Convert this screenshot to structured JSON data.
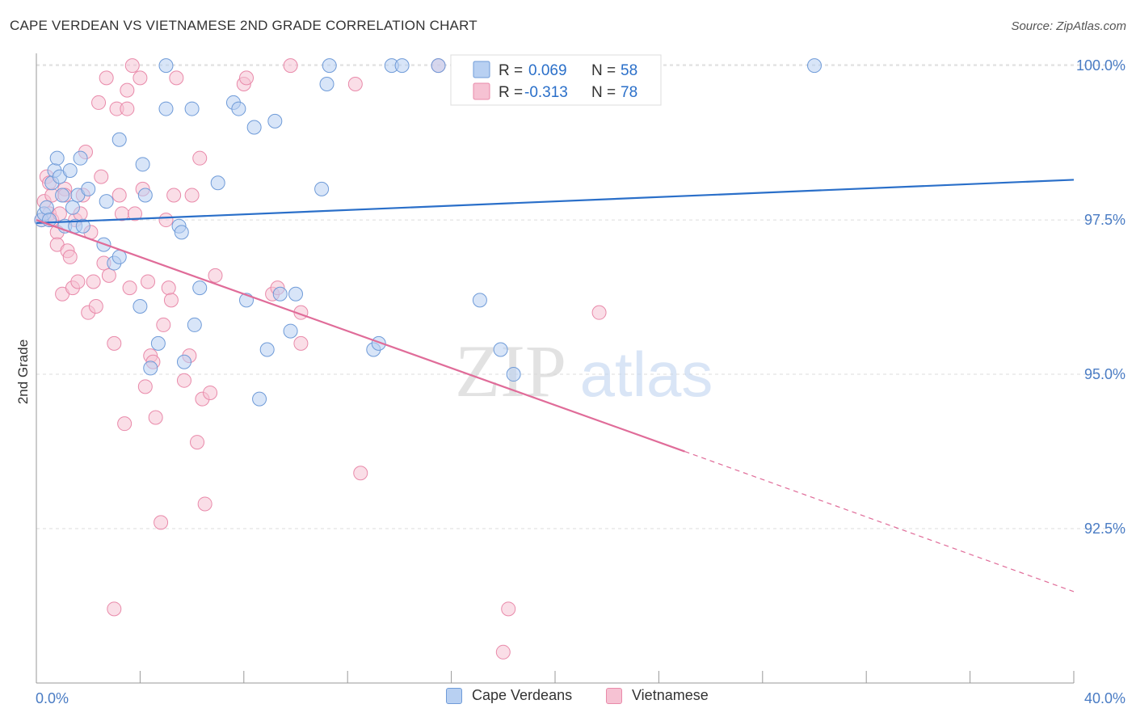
{
  "title": "CAPE VERDEAN VS VIETNAMESE 2ND GRADE CORRELATION CHART",
  "source": "Source: ZipAtlas.com",
  "watermark": {
    "zip": "ZIP",
    "atlas": "atlas"
  },
  "colors": {
    "blue_fill": "#b8d0f2",
    "blue_stroke": "#6f9bd8",
    "blue_line": "#2a6fc9",
    "pink_fill": "#f6c2d3",
    "pink_stroke": "#e98aaa",
    "pink_line": "#e06c99",
    "tick_label": "#4a7cc4",
    "grid": "#dddddd"
  },
  "stats_legend": [
    {
      "r_label": "R =",
      "r_value": "0.069",
      "n_label": "N =",
      "n_value": "58",
      "series": "blue"
    },
    {
      "r_label": "R =",
      "r_value": "-0.313",
      "n_label": "N =",
      "n_value": "78",
      "series": "pink"
    }
  ],
  "bottom_legend": [
    {
      "label": "Cape Verdeans",
      "series": "blue"
    },
    {
      "label": "Vietnamese",
      "series": "pink"
    }
  ],
  "chart_data": {
    "type": "scatter",
    "title": "CAPE VERDEAN VS VIETNAMESE 2ND GRADE CORRELATION CHART",
    "xlabel": "",
    "ylabel": "2nd Grade",
    "xlim": [
      0,
      40
    ],
    "ylim": [
      90.0,
      100.25
    ],
    "x_tick_labels": [
      "0.0%",
      "40.0%"
    ],
    "y_ticks": [
      92.5,
      95.0,
      97.5,
      100.0
    ],
    "y_tick_labels": [
      "92.5%",
      "95.0%",
      "97.5%",
      "100.0%"
    ],
    "grid": "horizontal dashed",
    "series": [
      {
        "name": "Cape Verdeans",
        "color": "blue",
        "points": [
          [
            0.2,
            97.5
          ],
          [
            0.3,
            97.6
          ],
          [
            0.4,
            97.7
          ],
          [
            0.5,
            97.5
          ],
          [
            0.6,
            98.1
          ],
          [
            0.7,
            98.3
          ],
          [
            0.9,
            98.2
          ],
          [
            0.8,
            98.5
          ],
          [
            1.0,
            97.9
          ],
          [
            1.1,
            97.4
          ],
          [
            1.3,
            98.3
          ],
          [
            1.4,
            97.7
          ],
          [
            1.5,
            97.4
          ],
          [
            1.6,
            97.9
          ],
          [
            1.7,
            98.5
          ],
          [
            1.8,
            97.4
          ],
          [
            2.0,
            98.0
          ],
          [
            2.7,
            97.8
          ],
          [
            2.6,
            97.1
          ],
          [
            3.0,
            96.8
          ],
          [
            3.2,
            96.9
          ],
          [
            3.2,
            98.8
          ],
          [
            4.0,
            96.1
          ],
          [
            4.4,
            95.1
          ],
          [
            4.7,
            95.5
          ],
          [
            4.2,
            97.9
          ],
          [
            4.1,
            98.4
          ],
          [
            5.0,
            99.3
          ],
          [
            5.0,
            100.0
          ],
          [
            6.0,
            99.3
          ],
          [
            5.5,
            97.4
          ],
          [
            5.6,
            97.3
          ],
          [
            5.7,
            95.2
          ],
          [
            6.1,
            95.8
          ],
          [
            6.3,
            96.4
          ],
          [
            7.0,
            98.1
          ],
          [
            7.6,
            99.4
          ],
          [
            7.8,
            99.3
          ],
          [
            8.1,
            96.2
          ],
          [
            8.6,
            94.6
          ],
          [
            8.4,
            99.0
          ],
          [
            8.9,
            95.4
          ],
          [
            9.2,
            99.1
          ],
          [
            9.4,
            96.3
          ],
          [
            9.8,
            95.7
          ],
          [
            10.0,
            96.3
          ],
          [
            11.0,
            98.0
          ],
          [
            11.3,
            100.0
          ],
          [
            11.2,
            99.7
          ],
          [
            13.0,
            95.4
          ],
          [
            13.2,
            95.5
          ],
          [
            13.7,
            100.0
          ],
          [
            14.1,
            100.0
          ],
          [
            15.5,
            100.0
          ],
          [
            17.1,
            96.2
          ],
          [
            17.9,
            95.4
          ],
          [
            18.4,
            95.0
          ],
          [
            30.0,
            100.0
          ]
        ],
        "trend": {
          "x": [
            0,
            40
          ],
          "y": [
            97.45,
            98.15
          ]
        }
      },
      {
        "name": "Vietnamese",
        "color": "pink",
        "points": [
          [
            0.2,
            97.5
          ],
          [
            0.3,
            97.8
          ],
          [
            0.4,
            98.2
          ],
          [
            0.5,
            97.6
          ],
          [
            0.6,
            97.9
          ],
          [
            0.6,
            97.5
          ],
          [
            0.8,
            97.3
          ],
          [
            0.8,
            97.1
          ],
          [
            0.9,
            97.6
          ],
          [
            1.0,
            96.3
          ],
          [
            1.1,
            98.0
          ],
          [
            1.2,
            97.0
          ],
          [
            1.3,
            96.9
          ],
          [
            1.4,
            96.4
          ],
          [
            1.5,
            97.5
          ],
          [
            1.6,
            96.5
          ],
          [
            1.7,
            97.6
          ],
          [
            1.8,
            97.9
          ],
          [
            1.9,
            98.6
          ],
          [
            2.0,
            96.0
          ],
          [
            2.1,
            97.3
          ],
          [
            2.2,
            96.5
          ],
          [
            2.4,
            99.4
          ],
          [
            2.5,
            98.2
          ],
          [
            2.6,
            96.8
          ],
          [
            2.7,
            99.8
          ],
          [
            2.8,
            96.6
          ],
          [
            3.0,
            95.5
          ],
          [
            3.0,
            91.2
          ],
          [
            3.1,
            99.3
          ],
          [
            3.2,
            97.9
          ],
          [
            3.3,
            97.6
          ],
          [
            3.5,
            99.3
          ],
          [
            3.5,
            99.6
          ],
          [
            3.6,
            96.4
          ],
          [
            3.7,
            100.0
          ],
          [
            3.8,
            97.6
          ],
          [
            4.0,
            99.8
          ],
          [
            4.1,
            98.0
          ],
          [
            4.2,
            94.8
          ],
          [
            4.3,
            96.5
          ],
          [
            4.4,
            95.3
          ],
          [
            4.5,
            95.2
          ],
          [
            4.6,
            94.3
          ],
          [
            4.8,
            92.6
          ],
          [
            4.9,
            95.8
          ],
          [
            5.0,
            97.5
          ],
          [
            5.1,
            96.4
          ],
          [
            5.2,
            96.2
          ],
          [
            5.3,
            97.9
          ],
          [
            5.4,
            99.8
          ],
          [
            5.7,
            94.9
          ],
          [
            5.9,
            95.3
          ],
          [
            6.0,
            97.9
          ],
          [
            6.2,
            93.9
          ],
          [
            6.3,
            98.5
          ],
          [
            6.4,
            94.6
          ],
          [
            6.5,
            92.9
          ],
          [
            6.7,
            94.7
          ],
          [
            6.9,
            96.6
          ],
          [
            8.0,
            99.7
          ],
          [
            8.1,
            99.8
          ],
          [
            9.1,
            96.3
          ],
          [
            9.3,
            96.4
          ],
          [
            9.8,
            100.0
          ],
          [
            10.2,
            95.5
          ],
          [
            10.2,
            96.0
          ],
          [
            12.3,
            99.7
          ],
          [
            12.5,
            93.4
          ],
          [
            15.5,
            100.0
          ],
          [
            16.9,
            100.0
          ],
          [
            18.0,
            90.5
          ],
          [
            18.2,
            91.2
          ],
          [
            21.7,
            96.0
          ],
          [
            0.5,
            98.1
          ],
          [
            1.1,
            97.9
          ],
          [
            2.3,
            96.1
          ],
          [
            3.4,
            94.2
          ]
        ],
        "trend": {
          "x": [
            0,
            25.0
          ],
          "y": [
            97.5,
            93.75
          ]
        },
        "trend_extension": {
          "x": [
            25.0,
            40
          ],
          "y": [
            93.75,
            91.48
          ]
        }
      }
    ]
  }
}
